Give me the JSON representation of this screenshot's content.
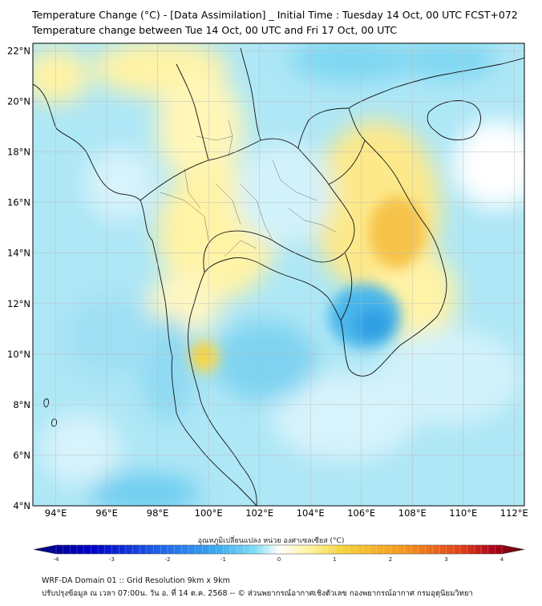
{
  "header": {
    "title_line1": "Temperature Change (°C) - [Data Assimilation] _ Initial Time : Tuesday 14 Oct, 00 UTC FCST+072",
    "title_line2": "Temperature change between Tue 14 Oct, 00 UTC and Fri 17 Oct, 00 UTC"
  },
  "map": {
    "lat_labels": [
      "22°N",
      "20°N",
      "18°N",
      "16°N",
      "14°N",
      "12°N",
      "10°N",
      "8°N",
      "6°N",
      "4°N"
    ],
    "lon_labels": [
      "94°E",
      "96°E",
      "98°E",
      "100°E",
      "102°E",
      "104°E",
      "106°E",
      "108°E",
      "110°E",
      "112°E"
    ],
    "lat_range": [
      4,
      22.3
    ],
    "lon_range": [
      93.1,
      112.4
    ]
  },
  "colorbar": {
    "label": "อุณหภูมิเปลี่ยนแปลง หน่วย องศาเซลเซียส (°C)",
    "ticks": [
      "-4",
      "-3",
      "-2",
      "-1",
      "0",
      "1",
      "2",
      "3",
      "4"
    ],
    "range": [
      -4,
      4
    ],
    "colors": [
      "#00007a",
      "#0000c8",
      "#1f5fe8",
      "#3aa8f0",
      "#7fdcf5",
      "#ffffff",
      "#fff4a0",
      "#f5d23c",
      "#f59a1e",
      "#e0401a",
      "#a8001a",
      "#5a0000"
    ]
  },
  "footer": {
    "line1": "WRF-DA Domain 01 :: Grid Resolution 9km x 9km",
    "line2": "ปรับปรุงข้อมูล ณ เวลา 07:00น. วัน อ. ที่ 14 ต.ค. 2568 -- © ส่วนพยากรณ์อากาศเชิงตัวเลข กองพยากรณ์อากาศ กรมอุตุนิยมวิทยา"
  }
}
